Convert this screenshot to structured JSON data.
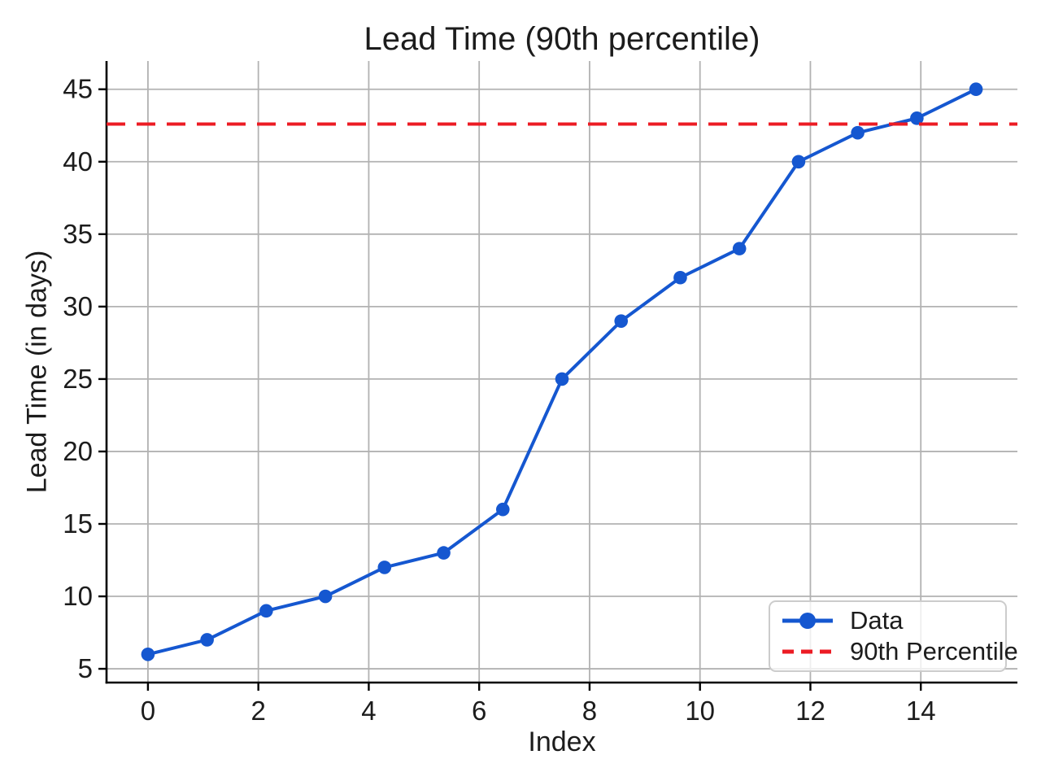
{
  "chart_data": {
    "type": "line",
    "title": "Lead Time (90th percentile)",
    "xlabel": "Index",
    "ylabel": "Lead Time (in days)",
    "x": [
      0,
      1.0714,
      2.1429,
      3.2143,
      4.2857,
      5.3571,
      6.4286,
      7.5,
      8.5714,
      9.6429,
      10.7143,
      11.7857,
      12.8571,
      13.9286,
      15
    ],
    "series": [
      {
        "name": "Data",
        "type": "line",
        "marker": "circle",
        "color": "#1557d0",
        "values": [
          6,
          7,
          9,
          10,
          12,
          13,
          16,
          25,
          29,
          32,
          34,
          40,
          42,
          43,
          45
        ]
      },
      {
        "name": "90th Percentile",
        "type": "hline",
        "dashed": true,
        "color": "#ec1c24",
        "value": 42.6
      }
    ],
    "xticks": [
      0,
      2,
      4,
      6,
      8,
      10,
      12,
      14
    ],
    "yticks": [
      5,
      10,
      15,
      20,
      25,
      30,
      35,
      40,
      45
    ],
    "xlim": [
      -0.75,
      15.75
    ],
    "ylim": [
      4.05,
      46.95
    ],
    "grid": true,
    "legend_position": "lower right",
    "colors": {
      "data_series": "#1557d0",
      "percentile_line": "#ec1c24",
      "grid": "#b2b2b2",
      "axis": "#000000",
      "text": "#1c1c1c",
      "legend_border": "#cccccc",
      "background": "#ffffff"
    }
  }
}
